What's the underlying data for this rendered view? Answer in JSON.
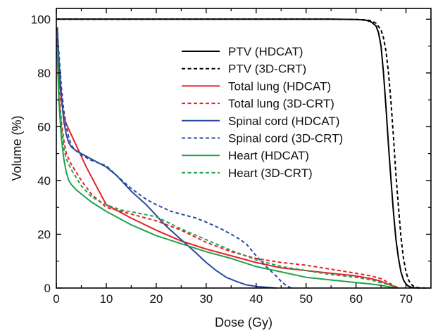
{
  "chart_data": {
    "type": "line",
    "xlabel": "Dose (Gy)",
    "ylabel": "Volume (%)",
    "xlim": [
      0,
      75
    ],
    "ylim": [
      0,
      104
    ],
    "xticks": [
      0,
      10,
      20,
      30,
      40,
      50,
      60,
      70
    ],
    "yticks": [
      0,
      20,
      40,
      60,
      80,
      100
    ],
    "grid": false,
    "legend_position": "upper-right",
    "series": [
      {
        "name": "PTV (HDCAT)",
        "color": "#000000",
        "dash": "solid",
        "x": [
          0,
          20,
          40,
          55,
          60,
          62,
          63,
          64,
          64.5,
          65,
          65.5,
          66,
          66.5,
          67,
          67.5,
          68,
          68.5,
          69,
          69.5,
          70,
          70.5,
          71,
          71.5,
          72,
          73
        ],
        "y": [
          100,
          100,
          100,
          100,
          99.9,
          99.6,
          99,
          97.5,
          95,
          90,
          80,
          67,
          53,
          40,
          28,
          18,
          11,
          6,
          3,
          1.5,
          0.7,
          0.3,
          0.1,
          0.05,
          0
        ]
      },
      {
        "name": "PTV (3D-CRT)",
        "color": "#000000",
        "dash": "dashed",
        "x": [
          0,
          20,
          40,
          55,
          60,
          62,
          63,
          64,
          65,
          65.5,
          66,
          66.5,
          67,
          67.5,
          68,
          68.5,
          69,
          69.5,
          70,
          70.5,
          71,
          71.5,
          72,
          72.5,
          73,
          74
        ],
        "y": [
          100,
          100,
          100,
          100,
          99.9,
          99.8,
          99.4,
          98.5,
          96,
          93,
          88,
          80,
          69,
          56,
          42,
          30,
          19,
          11,
          6,
          3,
          1.5,
          0.7,
          0.3,
          0.1,
          0.05,
          0
        ]
      },
      {
        "name": "Total lung (HDCAT)",
        "color": "#e8202a",
        "dash": "solid",
        "x": [
          0.2,
          0.5,
          1,
          1.5,
          2,
          3,
          4,
          5,
          6,
          8,
          10,
          12,
          15,
          20,
          25,
          30,
          35,
          40,
          45,
          50,
          55,
          60,
          63,
          65,
          67,
          68.5
        ],
        "y": [
          93,
          80,
          70,
          64,
          61,
          57,
          53,
          49,
          45,
          38,
          31,
          29,
          26,
          21.5,
          17.5,
          14.5,
          12,
          9.5,
          7.5,
          6.5,
          5.5,
          4.5,
          3.5,
          2.5,
          1,
          0
        ]
      },
      {
        "name": "Total lung (3D-CRT)",
        "color": "#e8202a",
        "dash": "dashed",
        "x": [
          0.2,
          0.5,
          1,
          1.5,
          2,
          3,
          4,
          5,
          7,
          10,
          13,
          16,
          20,
          25,
          30,
          35,
          40,
          45,
          50,
          55,
          60,
          63,
          65,
          67,
          68.5
        ],
        "y": [
          93,
          75,
          62,
          55,
          50,
          46,
          43,
          40,
          35,
          30,
          28.5,
          27,
          25,
          21.5,
          17,
          13.5,
          11,
          9.5,
          8.5,
          7,
          5.5,
          4.5,
          3.5,
          1.5,
          0
        ]
      },
      {
        "name": "Spinal cord (HDCAT)",
        "color": "#2a4a9e",
        "dash": "solid",
        "x": [
          0.2,
          0.5,
          1,
          1.5,
          2,
          2.5,
          3,
          4,
          5,
          6,
          8,
          10,
          12,
          15,
          18,
          20,
          22,
          25,
          28,
          30,
          32,
          34,
          36,
          38,
          40,
          42,
          44
        ],
        "y": [
          97,
          85,
          72,
          62,
          57,
          54,
          52.5,
          51,
          50,
          49,
          47,
          45,
          42,
          36,
          31,
          27,
          23,
          18,
          13,
          9.5,
          6.5,
          4,
          2.5,
          1.2,
          0.6,
          0.3,
          0
        ]
      },
      {
        "name": "Spinal cord (3D-CRT)",
        "color": "#2a4a9e",
        "dash": "dashed",
        "x": [
          0.2,
          0.5,
          1,
          1.5,
          2,
          2.5,
          3,
          4,
          5,
          7,
          10,
          12,
          15,
          18,
          20,
          23,
          25,
          28,
          30,
          33,
          36,
          38,
          40,
          42,
          44,
          45,
          46,
          47
        ],
        "y": [
          97,
          88,
          75,
          66,
          60,
          56,
          53,
          51,
          49.5,
          47.5,
          45.5,
          42,
          37,
          33,
          31,
          28.5,
          27.5,
          26,
          24.5,
          22,
          19,
          16.5,
          12,
          8,
          4.5,
          2.5,
          1,
          0
        ]
      },
      {
        "name": "Heart (HDCAT)",
        "color": "#1fa34a",
        "dash": "solid",
        "x": [
          0.2,
          0.5,
          1,
          1.5,
          2,
          2.5,
          3,
          4,
          5,
          7,
          10,
          15,
          20,
          25,
          30,
          35,
          40,
          45,
          50,
          55,
          60,
          63,
          65,
          67,
          68
        ],
        "y": [
          88,
          70,
          56,
          48,
          43,
          40,
          38.5,
          36.5,
          35,
          32,
          28.5,
          23.5,
          19.5,
          16.5,
          13.5,
          11,
          8,
          6,
          4,
          3,
          2,
          1.5,
          1,
          0.3,
          0
        ]
      },
      {
        "name": "Heart (3D-CRT)",
        "color": "#1fa34a",
        "dash": "dashed",
        "x": [
          0.2,
          0.5,
          1,
          1.5,
          2,
          3,
          4,
          5,
          7,
          10,
          13,
          16,
          20,
          25,
          30,
          35,
          40,
          45,
          50,
          55,
          60,
          63,
          65,
          67,
          68.5
        ],
        "y": [
          90,
          72,
          60,
          52,
          48,
          44,
          41,
          38,
          34,
          31,
          29,
          28,
          26.5,
          22,
          18,
          14,
          10.5,
          8,
          6.5,
          5,
          4,
          3,
          2,
          1,
          0
        ]
      }
    ]
  }
}
